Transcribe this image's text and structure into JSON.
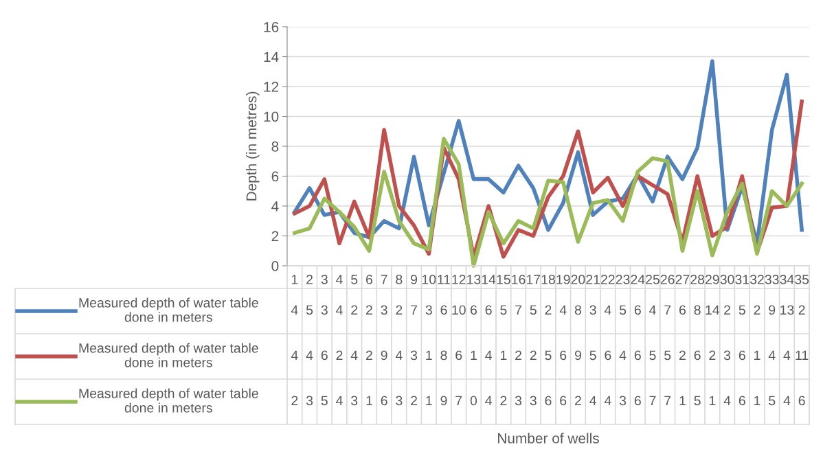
{
  "chart_data": {
    "type": "line",
    "ylabel": "Depth (in metres)",
    "annotations": [
      "Number of wells"
    ],
    "categories": [
      "1",
      "2",
      "3",
      "4",
      "5",
      "6",
      "7",
      "8",
      "9",
      "10",
      "11",
      "12",
      "13",
      "14",
      "15",
      "16",
      "17",
      "18",
      "19",
      "20",
      "21",
      "22",
      "23",
      "24",
      "25",
      "26",
      "27",
      "28",
      "29",
      "30",
      "31",
      "32",
      "33",
      "34",
      "35"
    ],
    "series": [
      {
        "name": "Measured depth of water table done in meters",
        "color": "#4f81bd",
        "values": [
          3.6,
          5.2,
          3.4,
          3.6,
          2.2,
          1.9,
          3.0,
          2.5,
          7.3,
          2.7,
          6.2,
          9.7,
          5.8,
          5.8,
          4.9,
          6.7,
          5.2,
          2.4,
          4.2,
          7.6,
          3.4,
          4.3,
          4.5,
          6.1,
          4.3,
          7.3,
          5.8,
          7.9,
          13.7,
          2.4,
          5.3,
          1.5,
          9.1,
          12.8,
          2.4
        ],
        "value_labels": [
          "4",
          "5",
          "3",
          "4",
          "2",
          "2",
          "3",
          "2",
          "7",
          "3",
          "6",
          "10",
          "6",
          "6",
          "5",
          "7",
          "5",
          "2",
          "4",
          "8",
          "3",
          "4",
          "5",
          "6",
          "4",
          "7",
          "6",
          "8",
          "14",
          "2",
          "5",
          "2",
          "9",
          "13",
          "2"
        ]
      },
      {
        "name": "Measured depth of water table done in meters",
        "color": "#c0504d",
        "values": [
          3.5,
          4.0,
          5.8,
          1.5,
          4.3,
          1.9,
          9.1,
          4.0,
          2.7,
          0.8,
          7.9,
          5.8,
          0.6,
          4.0,
          0.6,
          2.4,
          2.0,
          4.6,
          6.0,
          9.0,
          4.9,
          5.9,
          4.0,
          6.0,
          5.4,
          4.8,
          1.6,
          6.0,
          2.0,
          2.6,
          6.0,
          0.9,
          3.9,
          4.0,
          11.0
        ],
        "value_labels": [
          "4",
          "4",
          "6",
          "2",
          "4",
          "2",
          "9",
          "4",
          "3",
          "1",
          "8",
          "6",
          "1",
          "4",
          "1",
          "2",
          "2",
          "5",
          "6",
          "9",
          "5",
          "6",
          "4",
          "6",
          "5",
          "5",
          "2",
          "6",
          "2",
          "3",
          "6",
          "1",
          "4",
          "4",
          "11"
        ]
      },
      {
        "name": "Measured depth of water table done in meters",
        "color": "#9bbb59",
        "values": [
          2.2,
          2.5,
          4.5,
          3.6,
          2.6,
          1.0,
          6.3,
          3.0,
          1.5,
          1.1,
          8.5,
          6.8,
          0.0,
          3.6,
          1.5,
          3.0,
          2.5,
          5.7,
          5.6,
          1.6,
          4.2,
          4.4,
          3.0,
          6.3,
          7.2,
          7.0,
          1.0,
          5.0,
          0.7,
          3.6,
          5.5,
          0.8,
          5.0,
          4.0,
          5.5
        ],
        "value_labels": [
          "2",
          "3",
          "5",
          "4",
          "3",
          "1",
          "6",
          "3",
          "2",
          "1",
          "9",
          "7",
          "0",
          "4",
          "2",
          "3",
          "3",
          "6",
          "6",
          "2",
          "4",
          "4",
          "3",
          "6",
          "7",
          "7",
          "1",
          "5",
          "1",
          "4",
          "6",
          "1",
          "5",
          "4",
          "6"
        ]
      }
    ],
    "ylim": [
      0,
      16
    ],
    "yticks": [
      0,
      2,
      4,
      6,
      8,
      10,
      12,
      14,
      16
    ],
    "grid": "y",
    "marker": "none",
    "line_style": "solid"
  }
}
